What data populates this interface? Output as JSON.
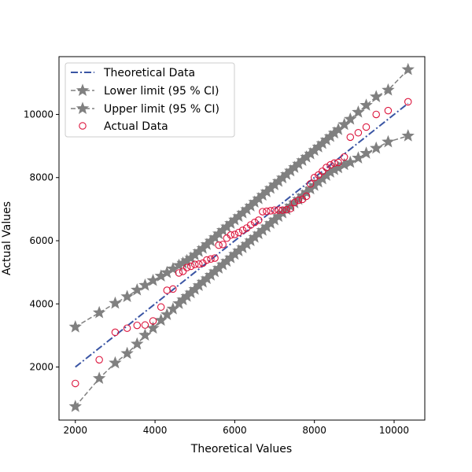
{
  "chart_data": {
    "type": "scatter",
    "title": "",
    "xlabel": "Theoretical Values",
    "ylabel": "Actual Values",
    "xlim": [
      1590,
      10770
    ],
    "ylim": [
      320,
      11830
    ],
    "xticks": [
      2000,
      4000,
      6000,
      8000,
      10000
    ],
    "yticks": [
      2000,
      4000,
      6000,
      8000,
      10000
    ],
    "grid": false,
    "legend_position": "top-left",
    "theoretical": {
      "name": "Theoretical Data",
      "color": "#3a55a4",
      "x": [
        2000,
        10350
      ],
      "y": [
        2000,
        10350
      ]
    },
    "lower_limit": {
      "name": "Lower limit (95 % CI)",
      "color": "#808080",
      "x": [
        2000,
        2600,
        3000,
        3300,
        3550,
        3750,
        3950,
        4150,
        4300,
        4450,
        4600,
        4700,
        4800,
        4900,
        5000,
        5100,
        5200,
        5300,
        5400,
        5500,
        5600,
        5700,
        5800,
        5900,
        6000,
        6100,
        6200,
        6300,
        6400,
        6500,
        6600,
        6700,
        6800,
        6900,
        7000,
        7100,
        7200,
        7300,
        7400,
        7500,
        7600,
        7700,
        7800,
        7900,
        8000,
        8100,
        8200,
        8300,
        8400,
        8500,
        8600,
        8750,
        8900,
        9100,
        9300,
        9550,
        9850,
        10350
      ],
      "y": [
        750,
        1640,
        2130,
        2430,
        2730,
        3010,
        3230,
        3480,
        3660,
        3840,
        4010,
        4130,
        4240,
        4350,
        4460,
        4580,
        4690,
        4800,
        4910,
        5020,
        5130,
        5240,
        5350,
        5460,
        5570,
        5680,
        5780,
        5890,
        6000,
        6110,
        6220,
        6330,
        6440,
        6550,
        6660,
        6770,
        6880,
        6990,
        7100,
        7200,
        7310,
        7420,
        7530,
        7640,
        7750,
        7860,
        7960,
        8070,
        8170,
        8250,
        8310,
        8410,
        8480,
        8620,
        8770,
        8930,
        9130,
        9320
      ]
    },
    "upper_limit": {
      "name": "Upper limit (95 % CI)",
      "color": "#808080",
      "x": [
        2000,
        2600,
        3000,
        3300,
        3550,
        3750,
        3950,
        4150,
        4300,
        4450,
        4600,
        4700,
        4800,
        4900,
        5000,
        5100,
        5200,
        5300,
        5400,
        5500,
        5600,
        5700,
        5800,
        5900,
        6000,
        6100,
        6200,
        6300,
        6400,
        6500,
        6600,
        6700,
        6800,
        6900,
        7000,
        7100,
        7200,
        7300,
        7400,
        7500,
        7600,
        7700,
        7800,
        7900,
        8000,
        8100,
        8200,
        8300,
        8400,
        8500,
        8600,
        8750,
        8900,
        9100,
        9300,
        9550,
        9850,
        10350
      ],
      "y": [
        3270,
        3720,
        4020,
        4230,
        4440,
        4590,
        4740,
        4880,
        4990,
        5110,
        5220,
        5290,
        5370,
        5450,
        5550,
        5660,
        5760,
        5880,
        5990,
        6100,
        6220,
        6330,
        6440,
        6550,
        6660,
        6770,
        6880,
        6990,
        7100,
        7220,
        7330,
        7440,
        7550,
        7660,
        7770,
        7880,
        7990,
        8100,
        8210,
        8320,
        8430,
        8540,
        8650,
        8750,
        8860,
        8970,
        9080,
        9190,
        9300,
        9410,
        9520,
        9680,
        9850,
        10070,
        10290,
        10560,
        10770,
        11420
      ]
    },
    "actual": {
      "name": "Actual Data",
      "color": "#dc143c",
      "x": [
        2000,
        2600,
        3000,
        3300,
        3550,
        3750,
        3950,
        4150,
        4300,
        4450,
        4600,
        4700,
        4800,
        4900,
        5000,
        5100,
        5200,
        5300,
        5400,
        5500,
        5600,
        5700,
        5800,
        5900,
        6000,
        6100,
        6200,
        6300,
        6400,
        6500,
        6600,
        6700,
        6800,
        6900,
        7000,
        7100,
        7200,
        7300,
        7400,
        7500,
        7600,
        7700,
        7800,
        7900,
        8000,
        8100,
        8200,
        8300,
        8400,
        8500,
        8600,
        8750,
        8900,
        9100,
        9300,
        9550,
        9850,
        10350
      ],
      "y": [
        1480,
        2230,
        3100,
        3230,
        3320,
        3330,
        3460,
        3900,
        4430,
        4470,
        4980,
        5030,
        5150,
        5190,
        5250,
        5260,
        5290,
        5390,
        5420,
        5450,
        5860,
        5880,
        6080,
        6180,
        6200,
        6260,
        6330,
        6400,
        6500,
        6580,
        6650,
        6920,
        6930,
        6950,
        6970,
        6970,
        6970,
        6980,
        7020,
        7210,
        7280,
        7310,
        7410,
        7800,
        8000,
        8080,
        8200,
        8320,
        8400,
        8460,
        8480,
        8650,
        9280,
        9420,
        9600,
        10000,
        10120,
        10400
      ]
    }
  }
}
